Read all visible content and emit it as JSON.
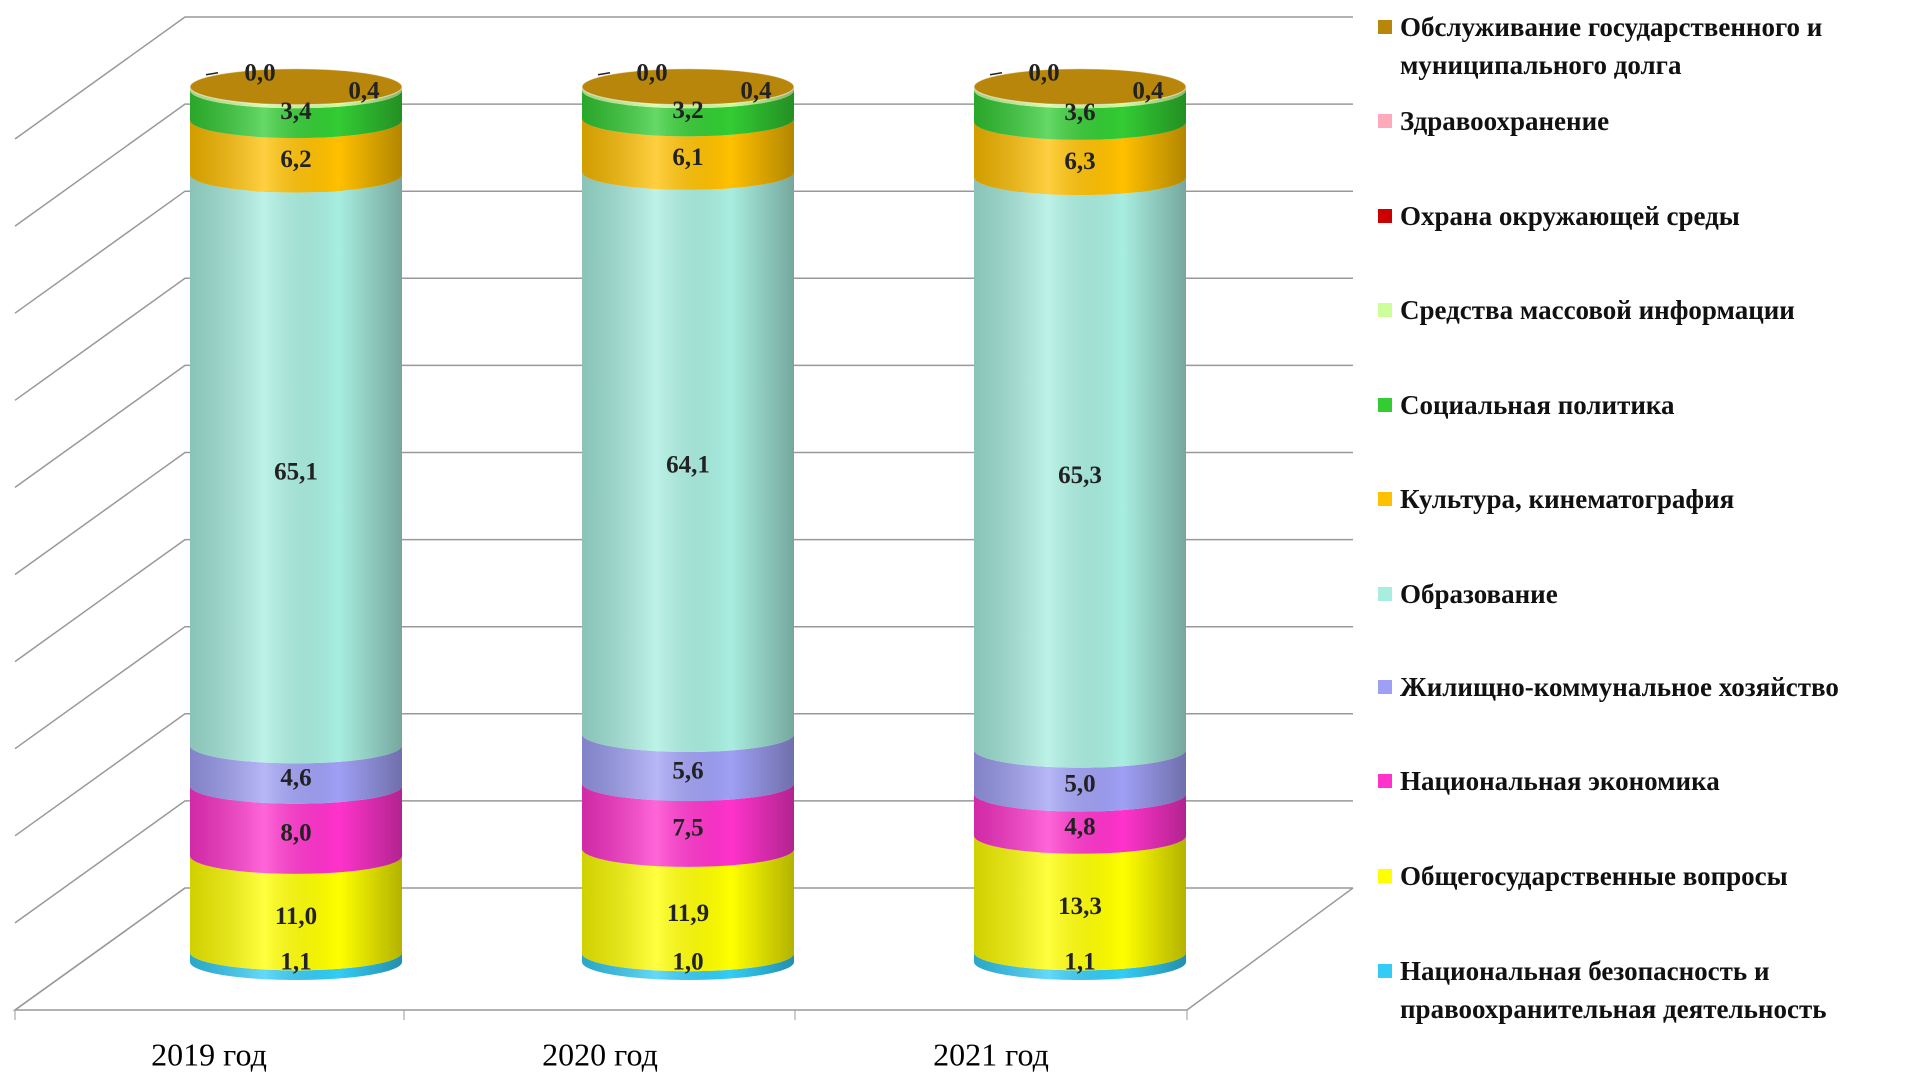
{
  "chart_data": {
    "type": "bar3d_cylinder_stacked",
    "categories": [
      "2019 год",
      "2020 год",
      "2021 год"
    ],
    "ylim": [
      0,
      100
    ],
    "yticks": [
      0,
      10,
      20,
      30,
      40,
      50,
      60,
      70,
      80,
      90,
      100
    ],
    "grid": true,
    "legend": "right",
    "series": [
      {
        "name": "Национальная безопасность и правоохранительная деятельность",
        "color": "#33ccf5",
        "values": [
          1.1,
          1.0,
          1.1
        ],
        "value_labels": [
          "1,1",
          "1,0",
          "1,1"
        ]
      },
      {
        "name": "Общегосударственные вопросы",
        "color": "#ffff00",
        "values": [
          11.0,
          11.9,
          13.3
        ],
        "value_labels": [
          "11,0",
          "11,9",
          "13,3"
        ]
      },
      {
        "name": "Национальная экономика",
        "color": "#ff33cc",
        "values": [
          8.0,
          7.5,
          4.8
        ],
        "value_labels": [
          "8,0",
          "7,5",
          "4,8"
        ]
      },
      {
        "name": "Жилищно-коммунальное хозяйство",
        "color": "#9f9ff5",
        "values": [
          4.6,
          5.6,
          5.0
        ],
        "value_labels": [
          "4,6",
          "5,6",
          "5,0"
        ]
      },
      {
        "name": "Образование",
        "color": "#a8eee0",
        "values": [
          65.1,
          64.1,
          65.3
        ],
        "value_labels": [
          "65,1",
          "64,1",
          "65,3"
        ]
      },
      {
        "name": "Культура, кинематография",
        "color": "#ffc000",
        "values": [
          6.2,
          6.1,
          6.3
        ],
        "value_labels": [
          "6,2",
          "6,1",
          "6,3"
        ]
      },
      {
        "name": "Социальная политика",
        "color": "#33cc33",
        "values": [
          3.4,
          3.2,
          3.6
        ],
        "value_labels": [
          "3,4",
          "3,2",
          "3,6"
        ]
      },
      {
        "name": "Средства массовой информации",
        "color": "#ccff99",
        "values": [
          0.4,
          0.4,
          0.4
        ],
        "value_labels": [
          "0,4",
          "0,4",
          "0,4"
        ]
      },
      {
        "name": "Охрана окружающей среды",
        "color": "#cc0000",
        "values": [
          0,
          0,
          0
        ]
      },
      {
        "name": "Здравоохранение",
        "color": "#ffaabb",
        "values": [
          0,
          0,
          0
        ]
      },
      {
        "name": "Обслуживание государственного и муниципального долга",
        "color": "#b8860b",
        "values": [
          0,
          0,
          0
        ],
        "value_labels": [
          "0,0",
          "0,0",
          "0,0"
        ]
      }
    ]
  }
}
